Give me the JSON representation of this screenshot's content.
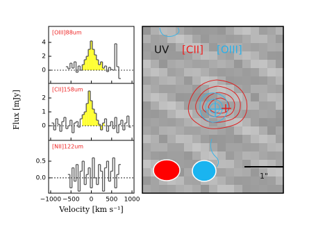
{
  "chart_data": [
    {
      "type": "step",
      "label": "[OIII]88um",
      "x": [
        -600,
        -550,
        -500,
        -450,
        -400,
        -350,
        -300,
        -250,
        -200,
        -150,
        -100,
        -50,
        0,
        50,
        100,
        150,
        200,
        250,
        300,
        350,
        400,
        450,
        500,
        550,
        600,
        650,
        700
      ],
      "values": [
        0.5,
        0.2,
        1.0,
        0.3,
        1.2,
        -0.3,
        0.6,
        0.0,
        0.8,
        1.5,
        2.0,
        3.0,
        4.2,
        3.0,
        2.2,
        1.5,
        0.8,
        1.2,
        0.3,
        0.6,
        -0.2,
        0.4,
        0.1,
        0.0,
        3.8,
        0.5,
        -1.2
      ],
      "highlight_xlim": [
        -200,
        300
      ],
      "highlight_color": "#ffff33",
      "color": "#555555",
      "xlim": [
        -1050,
        1050
      ],
      "ylim": [
        -1.9,
        6.3
      ],
      "yticks": [
        0,
        2,
        4
      ]
    },
    {
      "type": "step",
      "label": "[CII]158um",
      "ylabel": "Flux [mJy]",
      "x": [
        -950,
        -900,
        -850,
        -800,
        -750,
        -700,
        -650,
        -600,
        -550,
        -500,
        -450,
        -400,
        -350,
        -300,
        -250,
        -200,
        -150,
        -100,
        -50,
        0,
        50,
        100,
        150,
        200,
        250,
        300,
        350,
        400,
        450,
        500,
        550,
        600,
        650,
        700,
        750,
        800,
        850,
        900,
        950
      ],
      "values": [
        0.2,
        -0.3,
        0.5,
        0.1,
        -0.4,
        0.3,
        0.6,
        -0.2,
        0.0,
        0.4,
        -0.5,
        0.2,
        0.3,
        -0.1,
        0.5,
        0.8,
        1.0,
        1.6,
        2.5,
        1.8,
        1.2,
        0.9,
        0.4,
        0.1,
        -0.3,
        0.2,
        0.5,
        -0.4,
        0.0,
        0.3,
        -0.2,
        0.6,
        -0.5,
        0.1,
        0.4,
        -0.3,
        0.2,
        0.7,
        -0.1
      ],
      "highlight_xlim": [
        -200,
        300
      ],
      "highlight_color": "#ffff33",
      "color": "#555555",
      "xlim": [
        -1050,
        1050
      ],
      "ylim": [
        -1.05,
        3.05
      ],
      "yticks": [
        0,
        1,
        2
      ]
    },
    {
      "type": "step",
      "label": "[NII]122um",
      "xlabel": "Velocity [km s⁻¹]",
      "x": [
        -550,
        -500,
        -450,
        -400,
        -350,
        -300,
        -250,
        -200,
        -150,
        -100,
        -50,
        0,
        50,
        100,
        150,
        200,
        250,
        300,
        350,
        400,
        450,
        500,
        550,
        600,
        650,
        700
      ],
      "values": [
        0.1,
        -0.3,
        0.3,
        -0.1,
        0.4,
        -0.4,
        0.2,
        0.5,
        -0.2,
        0.1,
        0.3,
        -0.3,
        0.6,
        0.0,
        -0.2,
        0.4,
        0.2,
        -0.4,
        0.3,
        0.5,
        -0.1,
        0.2,
        0.6,
        -0.3,
        0.1,
        0.4
      ],
      "color": "#555555",
      "xlim": [
        -1050,
        1050
      ],
      "ylim": [
        -0.46,
        1.125
      ],
      "yticks": [
        {
          "value": 0,
          "label": "0.0"
        },
        {
          "value": 0.5,
          "label": "0.5"
        }
      ],
      "xticks": [
        {
          "value": -1000,
          "label": "−1000"
        },
        {
          "value": -500,
          "label": "−500"
        },
        0,
        500,
        1000
      ]
    }
  ],
  "image": {
    "uv": "UV",
    "cii": "[CII]",
    "oiii": "[OIII]",
    "scale": "1\""
  }
}
